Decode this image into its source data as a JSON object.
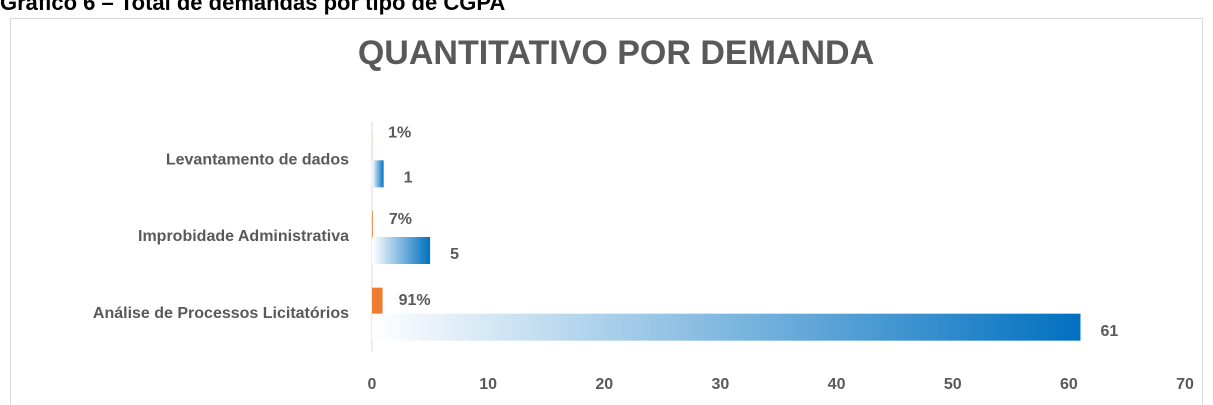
{
  "chart_data": {
    "type": "bar",
    "orientation": "horizontal",
    "heading": "Gráfico 6 – Total de demandas por tipo de CGPA",
    "title": "QUANTITATIVO POR DEMANDA",
    "categories": [
      "Análise de Processos Licitatórios",
      "Improbidade Administrativa",
      "Levantamento de dados"
    ],
    "series": [
      {
        "color": "#0070c0",
        "values": [
          61,
          5,
          1
        ]
      },
      {
        "color": "#ed7d31",
        "values": [
          0.91,
          0.07,
          0.01
        ],
        "value_labels": [
          "91%",
          "7%",
          "1%"
        ]
      }
    ],
    "xlim": [
      0,
      70
    ],
    "xticks": [
      0,
      10,
      20,
      30,
      40,
      50,
      60,
      70
    ]
  }
}
